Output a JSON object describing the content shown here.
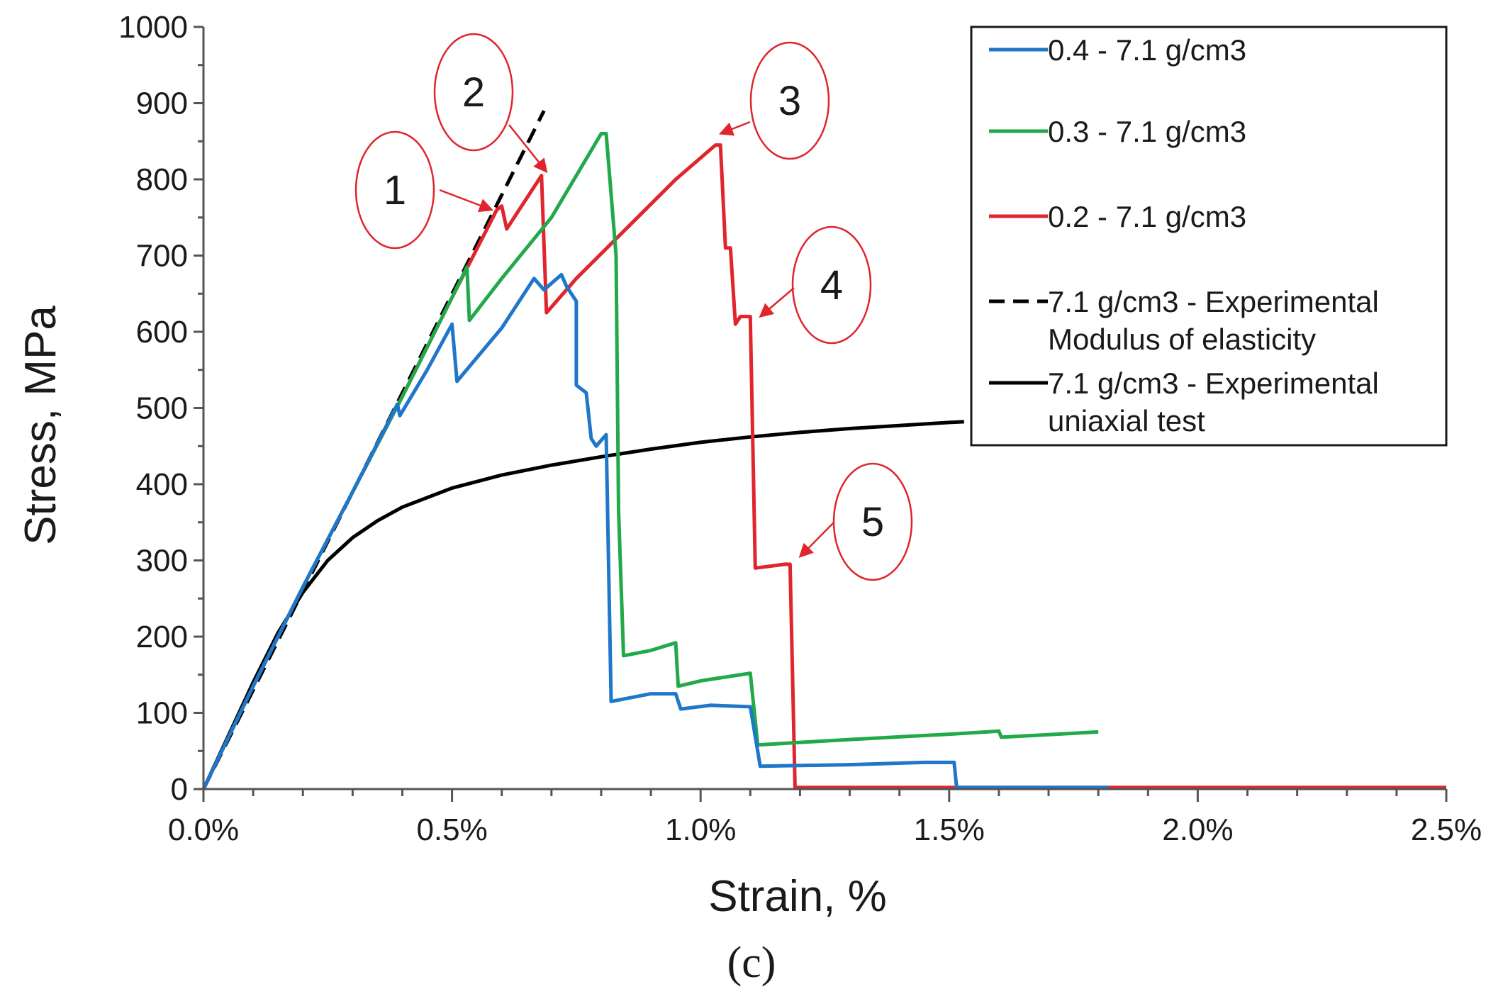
{
  "chart_data": {
    "type": "line",
    "title": "",
    "xlabel": "Strain, %",
    "ylabel": "Stress, MPa",
    "caption": "(c)",
    "xlim": [
      0,
      2.5
    ],
    "ylim": [
      0,
      1000
    ],
    "xticks": [
      {
        "value": 0.0,
        "label": "0.0%"
      },
      {
        "value": 0.5,
        "label": "0.5%"
      },
      {
        "value": 1.0,
        "label": "1.0%"
      },
      {
        "value": 1.5,
        "label": "1.5%"
      },
      {
        "value": 2.0,
        "label": "2.0%"
      },
      {
        "value": 2.5,
        "label": "2.5%"
      }
    ],
    "yticks": [
      {
        "value": 0,
        "label": "0"
      },
      {
        "value": 100,
        "label": "100"
      },
      {
        "value": 200,
        "label": "200"
      },
      {
        "value": 300,
        "label": "300"
      },
      {
        "value": 400,
        "label": "400"
      },
      {
        "value": 500,
        "label": "500"
      },
      {
        "value": 600,
        "label": "600"
      },
      {
        "value": 700,
        "label": "700"
      },
      {
        "value": 800,
        "label": "800"
      },
      {
        "value": 900,
        "label": "900"
      },
      {
        "value": 1000,
        "label": "1000"
      }
    ],
    "legend_position": "top-right",
    "series": [
      {
        "name": "0.4 - 7.1 g/cm3",
        "legend_lines": [
          "0.4 - 7.1 g/cm3"
        ],
        "color": "#1f77c9",
        "style": "solid",
        "points": [
          [
            0,
            0
          ],
          [
            0.1,
            135
          ],
          [
            0.2,
            265
          ],
          [
            0.3,
            390
          ],
          [
            0.39,
            505
          ],
          [
            0.395,
            490
          ],
          [
            0.45,
            550
          ],
          [
            0.5,
            610
          ],
          [
            0.51,
            535
          ],
          [
            0.6,
            605
          ],
          [
            0.665,
            670
          ],
          [
            0.685,
            655
          ],
          [
            0.72,
            675
          ],
          [
            0.73,
            660
          ],
          [
            0.74,
            650
          ],
          [
            0.75,
            640
          ],
          [
            0.75,
            530
          ],
          [
            0.77,
            520
          ],
          [
            0.78,
            460
          ],
          [
            0.79,
            450
          ],
          [
            0.81,
            465
          ],
          [
            0.82,
            115
          ],
          [
            0.9,
            125
          ],
          [
            0.95,
            125
          ],
          [
            0.96,
            105
          ],
          [
            1.02,
            110
          ],
          [
            1.1,
            108
          ],
          [
            1.12,
            30
          ],
          [
            1.3,
            32
          ],
          [
            1.45,
            35
          ],
          [
            1.51,
            35
          ],
          [
            1.515,
            2
          ],
          [
            1.7,
            2
          ],
          [
            1.82,
            2
          ]
        ]
      },
      {
        "name": "0.3 - 7.1 g/cm3",
        "legend_lines": [
          "0.3 - 7.1 g/cm3"
        ],
        "color": "#21a94a",
        "style": "solid",
        "points": [
          [
            0,
            0
          ],
          [
            0.1,
            135
          ],
          [
            0.2,
            265
          ],
          [
            0.3,
            390
          ],
          [
            0.4,
            515
          ],
          [
            0.5,
            645
          ],
          [
            0.53,
            685
          ],
          [
            0.535,
            615
          ],
          [
            0.6,
            670
          ],
          [
            0.7,
            750
          ],
          [
            0.8,
            860
          ],
          [
            0.81,
            860
          ],
          [
            0.83,
            700
          ],
          [
            0.835,
            365
          ],
          [
            0.845,
            175
          ],
          [
            0.9,
            182
          ],
          [
            0.95,
            192
          ],
          [
            0.955,
            135
          ],
          [
            1.0,
            142
          ],
          [
            1.1,
            152
          ],
          [
            1.115,
            58
          ],
          [
            1.3,
            65
          ],
          [
            1.5,
            72
          ],
          [
            1.6,
            76
          ],
          [
            1.605,
            68
          ],
          [
            1.8,
            75
          ]
        ]
      },
      {
        "name": "0.2 - 7.1 g/cm3",
        "legend_lines": [
          "0.2 - 7.1 g/cm3"
        ],
        "color": "#e0252d",
        "style": "solid",
        "points": [
          [
            0,
            0
          ],
          [
            0.1,
            135
          ],
          [
            0.2,
            265
          ],
          [
            0.3,
            390
          ],
          [
            0.4,
            515
          ],
          [
            0.5,
            645
          ],
          [
            0.59,
            760
          ],
          [
            0.6,
            765
          ],
          [
            0.61,
            735
          ],
          [
            0.68,
            805
          ],
          [
            0.69,
            625
          ],
          [
            0.75,
            670
          ],
          [
            0.85,
            735
          ],
          [
            0.95,
            800
          ],
          [
            1.03,
            845
          ],
          [
            1.04,
            845
          ],
          [
            1.05,
            710
          ],
          [
            1.06,
            710
          ],
          [
            1.07,
            610
          ],
          [
            1.08,
            620
          ],
          [
            1.1,
            620
          ],
          [
            1.11,
            290
          ],
          [
            1.17,
            295
          ],
          [
            1.18,
            295
          ],
          [
            1.19,
            2
          ],
          [
            1.4,
            2
          ],
          [
            1.8,
            2
          ],
          [
            2.3,
            2
          ],
          [
            2.5,
            2
          ]
        ]
      },
      {
        "name": "7.1 g/cm3 - Experimental Modulus of elasticity",
        "legend_lines": [
          "7.1 g/cm3 - Experimental",
          "Modulus of elasticity"
        ],
        "color": "#000000",
        "style": "dashed",
        "points": [
          [
            0,
            0
          ],
          [
            0.685,
            890
          ]
        ]
      },
      {
        "name": "7.1 g/cm3 - Experimental uniaxial test",
        "legend_lines": [
          "7.1 g/cm3 - Experimental",
          "uniaxial test"
        ],
        "color": "#000000",
        "style": "solid",
        "points": [
          [
            0,
            0
          ],
          [
            0.05,
            70
          ],
          [
            0.1,
            140
          ],
          [
            0.15,
            205
          ],
          [
            0.2,
            258
          ],
          [
            0.25,
            300
          ],
          [
            0.3,
            330
          ],
          [
            0.35,
            352
          ],
          [
            0.4,
            370
          ],
          [
            0.5,
            395
          ],
          [
            0.6,
            412
          ],
          [
            0.7,
            425
          ],
          [
            0.8,
            436
          ],
          [
            0.9,
            446
          ],
          [
            1.0,
            455
          ],
          [
            1.1,
            462
          ],
          [
            1.2,
            468
          ],
          [
            1.3,
            473
          ],
          [
            1.4,
            477
          ],
          [
            1.5,
            481
          ],
          [
            1.53,
            482
          ]
        ]
      }
    ],
    "annotations": [
      {
        "label": "1",
        "color": "#e0252d",
        "target": [
          0.58,
          760
        ]
      },
      {
        "label": "2",
        "color": "#e0252d",
        "target": [
          0.69,
          810
        ]
      },
      {
        "label": "3",
        "color": "#e0252d",
        "target": [
          1.04,
          860
        ]
      },
      {
        "label": "4",
        "color": "#e0252d",
        "target": [
          1.12,
          620
        ]
      },
      {
        "label": "5",
        "color": "#e0252d",
        "target": [
          1.2,
          305
        ]
      }
    ]
  }
}
